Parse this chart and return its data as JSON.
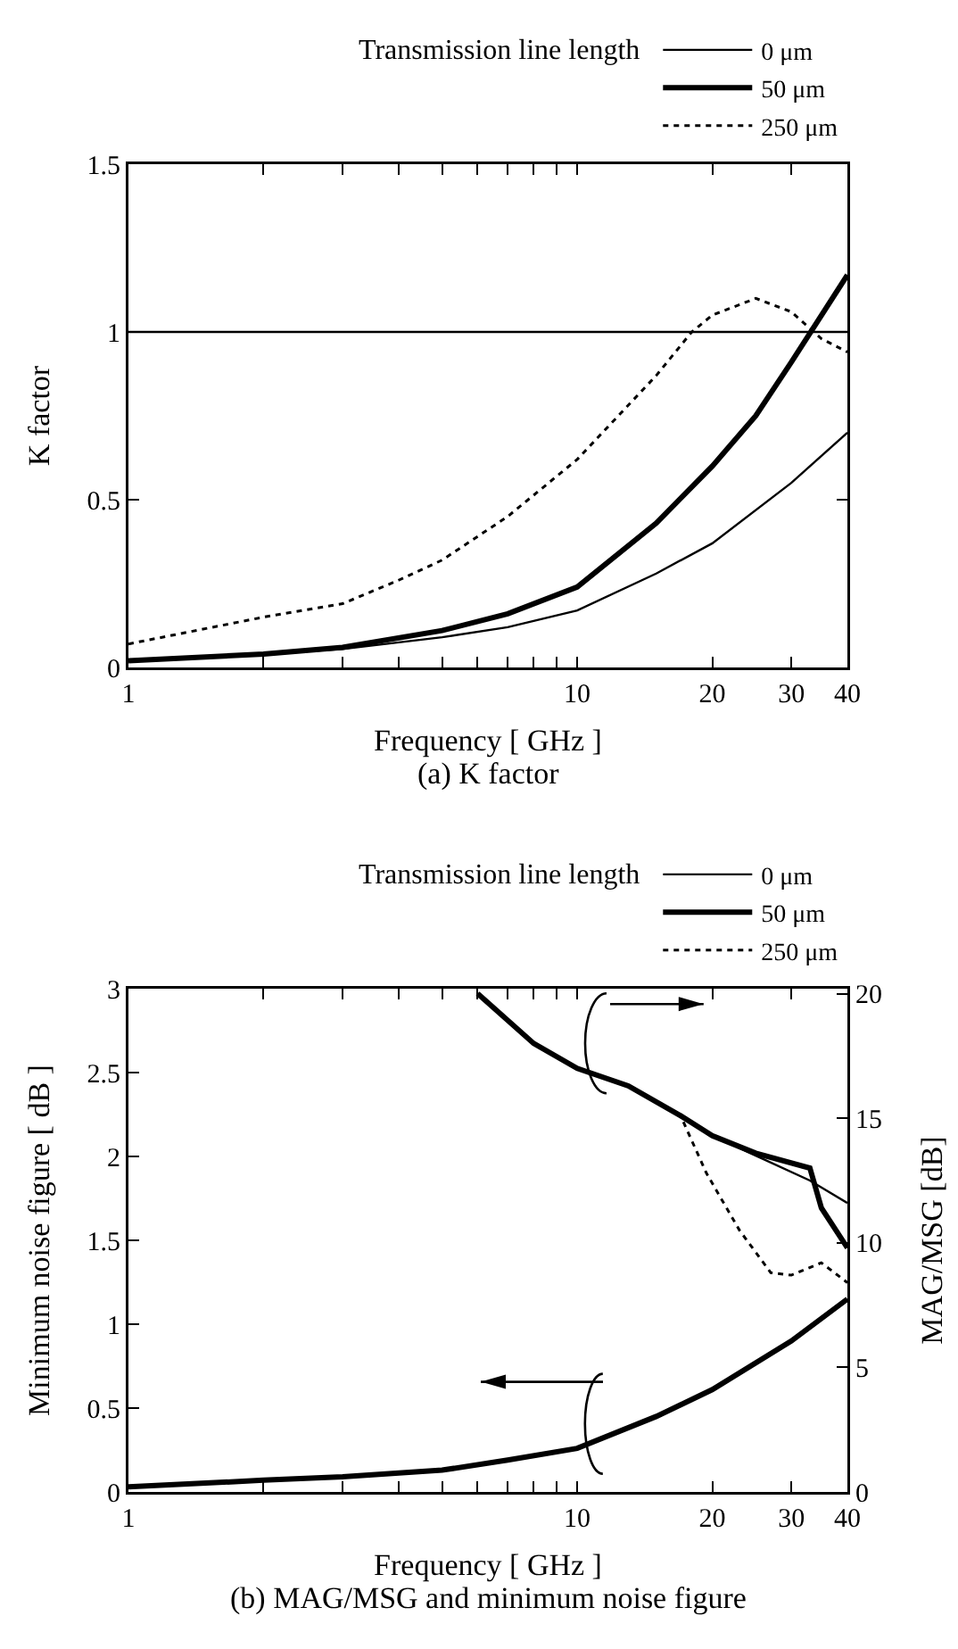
{
  "chart_data": [
    {
      "type": "line",
      "xlabel": "Frequency [ GHz ]",
      "ylabel": "K factor",
      "legend_title": "Transmission line length",
      "legend": "top right",
      "log": "x",
      "xlim": [
        1,
        40
      ],
      "xticks": [
        1,
        {
          "value": 2,
          "label": null
        },
        {
          "value": 3,
          "label": null
        },
        {
          "value": 4,
          "label": null
        },
        {
          "value": 5,
          "label": null
        },
        {
          "value": 6,
          "label": null
        },
        {
          "value": 7,
          "label": null
        },
        {
          "value": 8,
          "label": null
        },
        {
          "value": 9,
          "label": null
        },
        10,
        20,
        30,
        40
      ],
      "ylim": [
        0,
        1.5
      ],
      "yticks": [
        0,
        0.5,
        1,
        1.5
      ],
      "ref_lines": [
        {
          "axis": "y",
          "value": 1,
          "color": "#000000"
        }
      ],
      "annotations": [
        "(a) K factor"
      ],
      "series": [
        {
          "name": "0 μm",
          "color": "#000000",
          "line_style": "solid",
          "x": [
            1,
            2,
            3,
            5,
            7,
            10,
            15,
            20,
            30,
            40
          ],
          "values": [
            0.02,
            0.04,
            0.055,
            0.09,
            0.12,
            0.17,
            0.28,
            0.37,
            0.55,
            0.7
          ]
        },
        {
          "name": "50 μm",
          "color": "#000000",
          "line_style": "solid",
          "x": [
            1,
            2,
            3,
            5,
            7,
            10,
            15,
            20,
            25,
            30,
            40
          ],
          "values": [
            0.02,
            0.04,
            0.06,
            0.11,
            0.16,
            0.24,
            0.43,
            0.6,
            0.75,
            0.91,
            1.17
          ]
        },
        {
          "name": "250 μm",
          "color": "#000000",
          "line_style": "dotted",
          "x": [
            1,
            2,
            3,
            4,
            5,
            7,
            10,
            15,
            18,
            20,
            25,
            30,
            35,
            40
          ],
          "values": [
            0.07,
            0.15,
            0.19,
            0.26,
            0.32,
            0.45,
            0.62,
            0.87,
            1.0,
            1.05,
            1.1,
            1.06,
            0.98,
            0.94
          ]
        }
      ]
    },
    {
      "type": "line",
      "xlabel": "Frequency [ GHz ]",
      "ylabel": "Minimum noise figure [ dB ]",
      "y2label": "MAG/MSG [dB]",
      "legend_title": "Transmission line length",
      "legend": "top right",
      "log": "x",
      "xlim": [
        1,
        40
      ],
      "xticks": [
        1,
        {
          "value": 2,
          "label": null
        },
        {
          "value": 3,
          "label": null
        },
        {
          "value": 4,
          "label": null
        },
        {
          "value": 5,
          "label": null
        },
        {
          "value": 6,
          "label": null
        },
        {
          "value": 7,
          "label": null
        },
        {
          "value": 8,
          "label": null
        },
        {
          "value": 9,
          "label": null
        },
        10,
        20,
        30,
        40
      ],
      "ylim": [
        0,
        3
      ],
      "yticks": [
        0,
        0.5,
        1,
        1.5,
        2,
        2.5,
        3
      ],
      "y2lim": [
        0,
        20.2
      ],
      "y2ticks": [
        0,
        5,
        10,
        15,
        20
      ],
      "annotations": [
        "(b) MAG/MSG and minimum noise figure"
      ],
      "series": [
        {
          "name": "0 μm",
          "color": "#000000",
          "line_style": "solid",
          "axis": "y2",
          "x": [
            6,
            8,
            10,
            13,
            17,
            20,
            25,
            33,
            40
          ],
          "values": [
            20.0,
            18.0,
            17.0,
            16.3,
            15.1,
            14.3,
            13.5,
            12.5,
            11.6
          ]
        },
        {
          "name": "50 μm",
          "color": "#000000",
          "line_style": "solid",
          "axis": "y2",
          "x": [
            6,
            8,
            10,
            13,
            17,
            20,
            25,
            33,
            35,
            40
          ],
          "values": [
            20.0,
            18.0,
            17.0,
            16.3,
            15.1,
            14.3,
            13.6,
            13.0,
            11.4,
            9.8
          ]
        },
        {
          "name": "250 μm",
          "color": "#000000",
          "line_style": "dotted",
          "axis": "y2",
          "x": [
            6,
            8,
            10,
            13,
            17,
            19.4,
            23,
            27,
            30,
            35,
            40
          ],
          "values": [
            20.0,
            18.0,
            17.0,
            16.3,
            15.1,
            12.8,
            10.5,
            8.8,
            8.7,
            9.2,
            8.4
          ]
        },
        {
          "color": "#000000",
          "line_style": "solid",
          "x": [
            1,
            2,
            3,
            5,
            7,
            10,
            15,
            20,
            30,
            40
          ],
          "values": [
            0.03,
            0.07,
            0.09,
            0.13,
            0.19,
            0.26,
            0.45,
            0.61,
            0.9,
            1.15
          ]
        }
      ]
    }
  ]
}
